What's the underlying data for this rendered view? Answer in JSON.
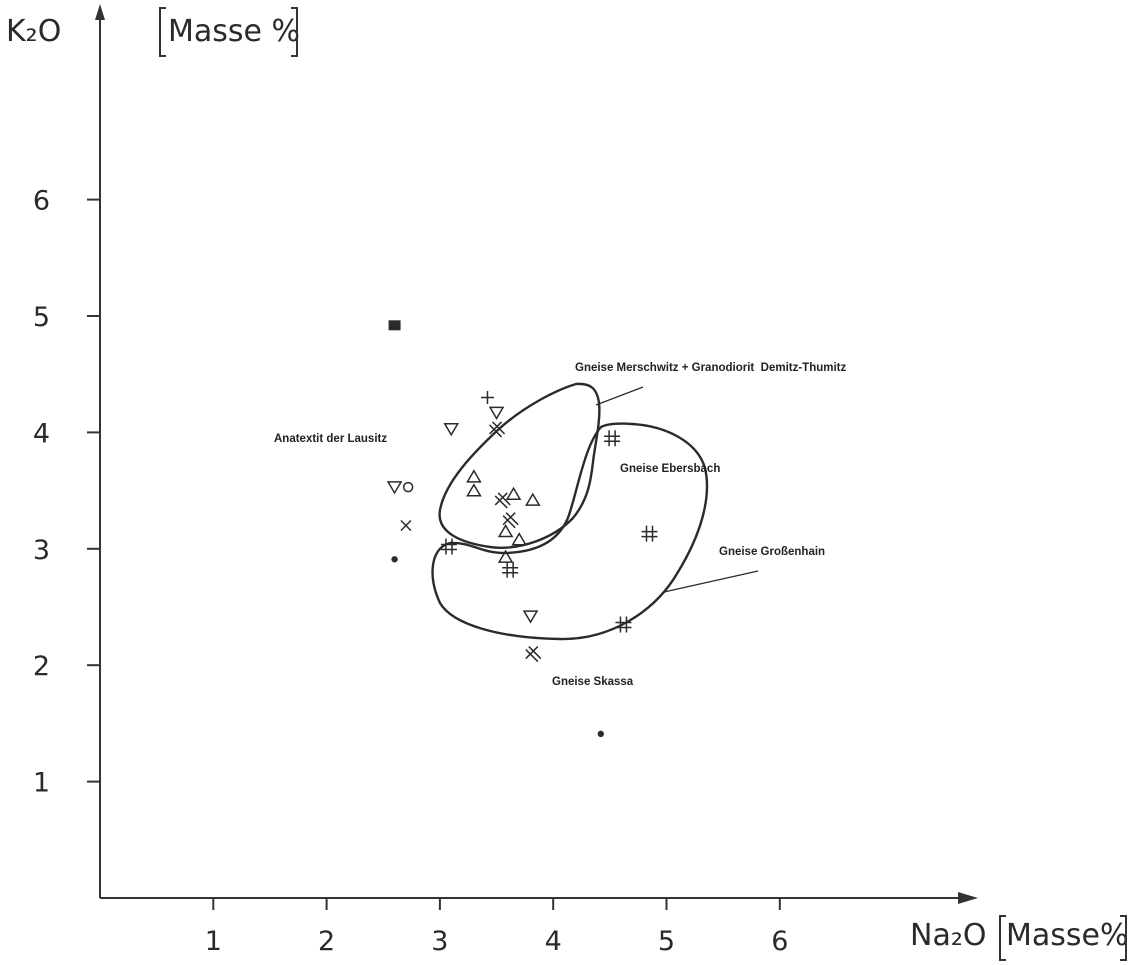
{
  "chart_data": {
    "type": "scatter",
    "xlabel": "Na₂O",
    "xunit": "Masse%",
    "ylabel": "K₂O",
    "yunit": "Masse %",
    "xlim": [
      0,
      7.5
    ],
    "ylim": [
      0,
      7.6
    ],
    "xticks": [
      1,
      2,
      3,
      4,
      5,
      6
    ],
    "yticks": [
      1,
      2,
      3,
      4,
      5,
      6
    ],
    "grid": false,
    "regions": [
      {
        "label": "Gneise Merschwitz + Granodiorit  Demitz-Thumitz"
      },
      {
        "label": "Gneise Ebersbach"
      },
      {
        "label": "Gneise Großenhain"
      },
      {
        "label": "Gneise Skassa"
      },
      {
        "label": "Anatextit der Lausitz"
      }
    ],
    "series": [
      {
        "symbol": "plus",
        "points": [
          [
            3.42,
            4.3
          ]
        ]
      },
      {
        "symbol": "triangle-down",
        "points": [
          [
            3.1,
            4.03
          ],
          [
            3.5,
            4.17
          ],
          [
            2.6,
            3.53
          ],
          [
            3.8,
            2.42
          ]
        ]
      },
      {
        "symbol": "circle",
        "points": [
          [
            2.72,
            3.53
          ]
        ]
      },
      {
        "symbol": "x",
        "points": [
          [
            2.7,
            3.2
          ]
        ]
      },
      {
        "symbol": "dot",
        "points": [
          [
            2.6,
            2.91
          ],
          [
            4.42,
            1.41
          ]
        ]
      },
      {
        "symbol": "square",
        "points": [
          [
            2.6,
            4.92
          ]
        ]
      },
      {
        "symbol": "triangle-up",
        "points": [
          [
            3.3,
            3.62
          ],
          [
            3.3,
            3.5
          ],
          [
            3.65,
            3.47
          ],
          [
            3.82,
            3.42
          ],
          [
            3.58,
            3.15
          ],
          [
            3.7,
            3.08
          ],
          [
            3.58,
            2.93
          ]
        ]
      },
      {
        "symbol": "double-x",
        "points": [
          [
            3.5,
            4.03
          ],
          [
            3.55,
            3.42
          ],
          [
            3.62,
            3.25
          ],
          [
            3.82,
            2.1
          ]
        ]
      },
      {
        "symbol": "hash",
        "points": [
          [
            4.52,
            3.95
          ],
          [
            3.08,
            3.02
          ],
          [
            3.62,
            2.82
          ],
          [
            4.85,
            3.13
          ],
          [
            4.62,
            2.35
          ]
        ]
      }
    ]
  }
}
